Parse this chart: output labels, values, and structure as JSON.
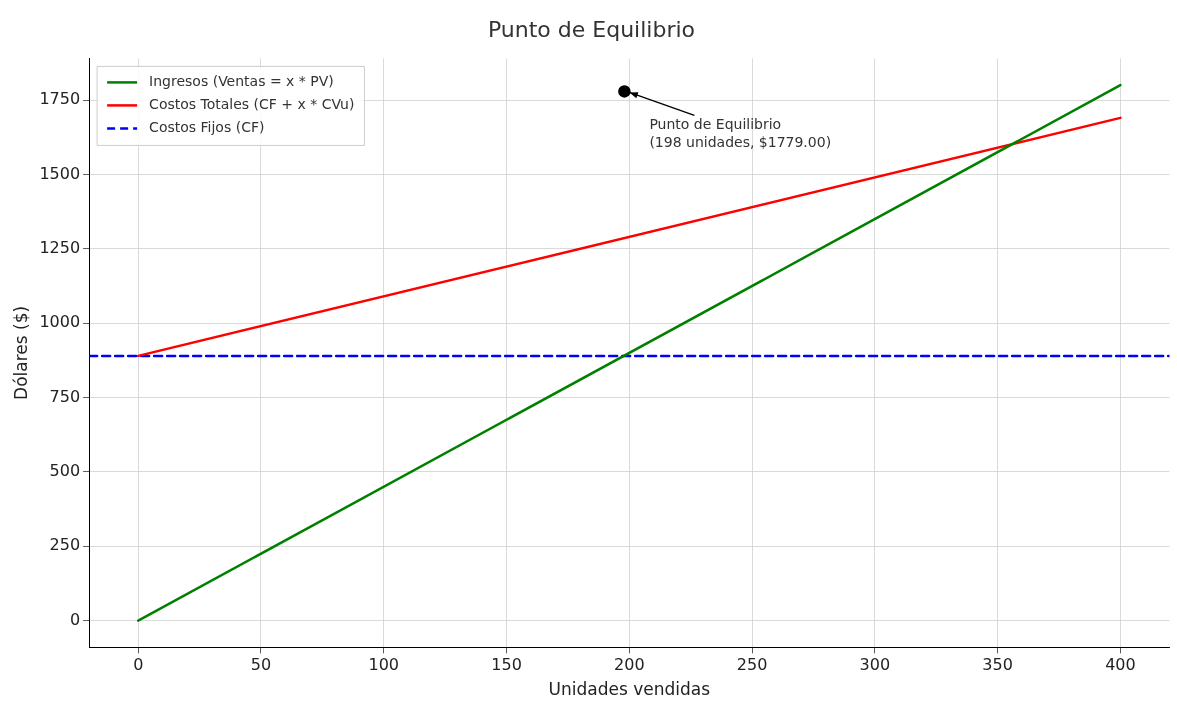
{
  "chart_data": {
    "type": "line",
    "title": "Punto de Equilibrio",
    "xlabel": "Unidades vendidas",
    "ylabel": "Dólares ($)",
    "xlim": [
      -20,
      420
    ],
    "xticks": [
      0,
      50,
      100,
      150,
      200,
      250,
      300,
      350,
      400
    ],
    "ylim": [
      -90,
      1890
    ],
    "yticks": [
      0,
      250,
      500,
      750,
      1000,
      1250,
      1500,
      1750
    ],
    "grid": true,
    "legend": "top left",
    "marker": "none",
    "series": [
      {
        "name": "Ingresos (Ventas = x * PV)",
        "color": "#008000",
        "x": [
          0,
          400
        ],
        "values": [
          0,
          1800
        ],
        "line_style": "solid"
      },
      {
        "name": "Costos Totales (CF + x * CVu)",
        "color": "#ff0000",
        "x": [
          0,
          400
        ],
        "values": [
          890,
          1690
        ],
        "line_style": "solid"
      },
      {
        "name": "Costos Fijos (CF)",
        "color": "#0000ff",
        "x": [
          -20,
          420
        ],
        "values": [
          890,
          890
        ],
        "line_style": "dashed"
      },
      {
        "type": "scatter",
        "color": "#000000",
        "x": [
          198
        ],
        "values": [
          1779
        ],
        "marker": "circle"
      }
    ],
    "annotations": [
      {
        "text": "Punto de Equilibrio\n(198 unidades, $1779.00)",
        "x": 198,
        "y": 1779
      }
    ]
  }
}
